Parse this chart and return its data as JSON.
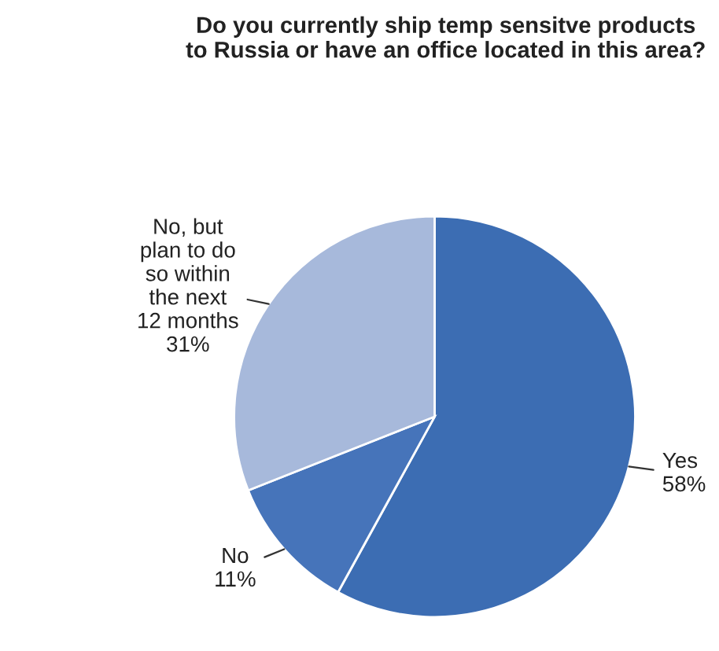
{
  "chart_data": {
    "type": "pie",
    "title": "Do you currently ship temp sensitve products\nto Russia or have an office located in this area?",
    "categories": [
      "Yes",
      "No",
      "No, but\nplan to do\nso within\nthe next\n12 months"
    ],
    "values": [
      58,
      11,
      31
    ],
    "value_labels": [
      "58%",
      "11%",
      "31%"
    ],
    "colors": [
      "#3c6db3",
      "#4674ba",
      "#a7b9db"
    ]
  }
}
